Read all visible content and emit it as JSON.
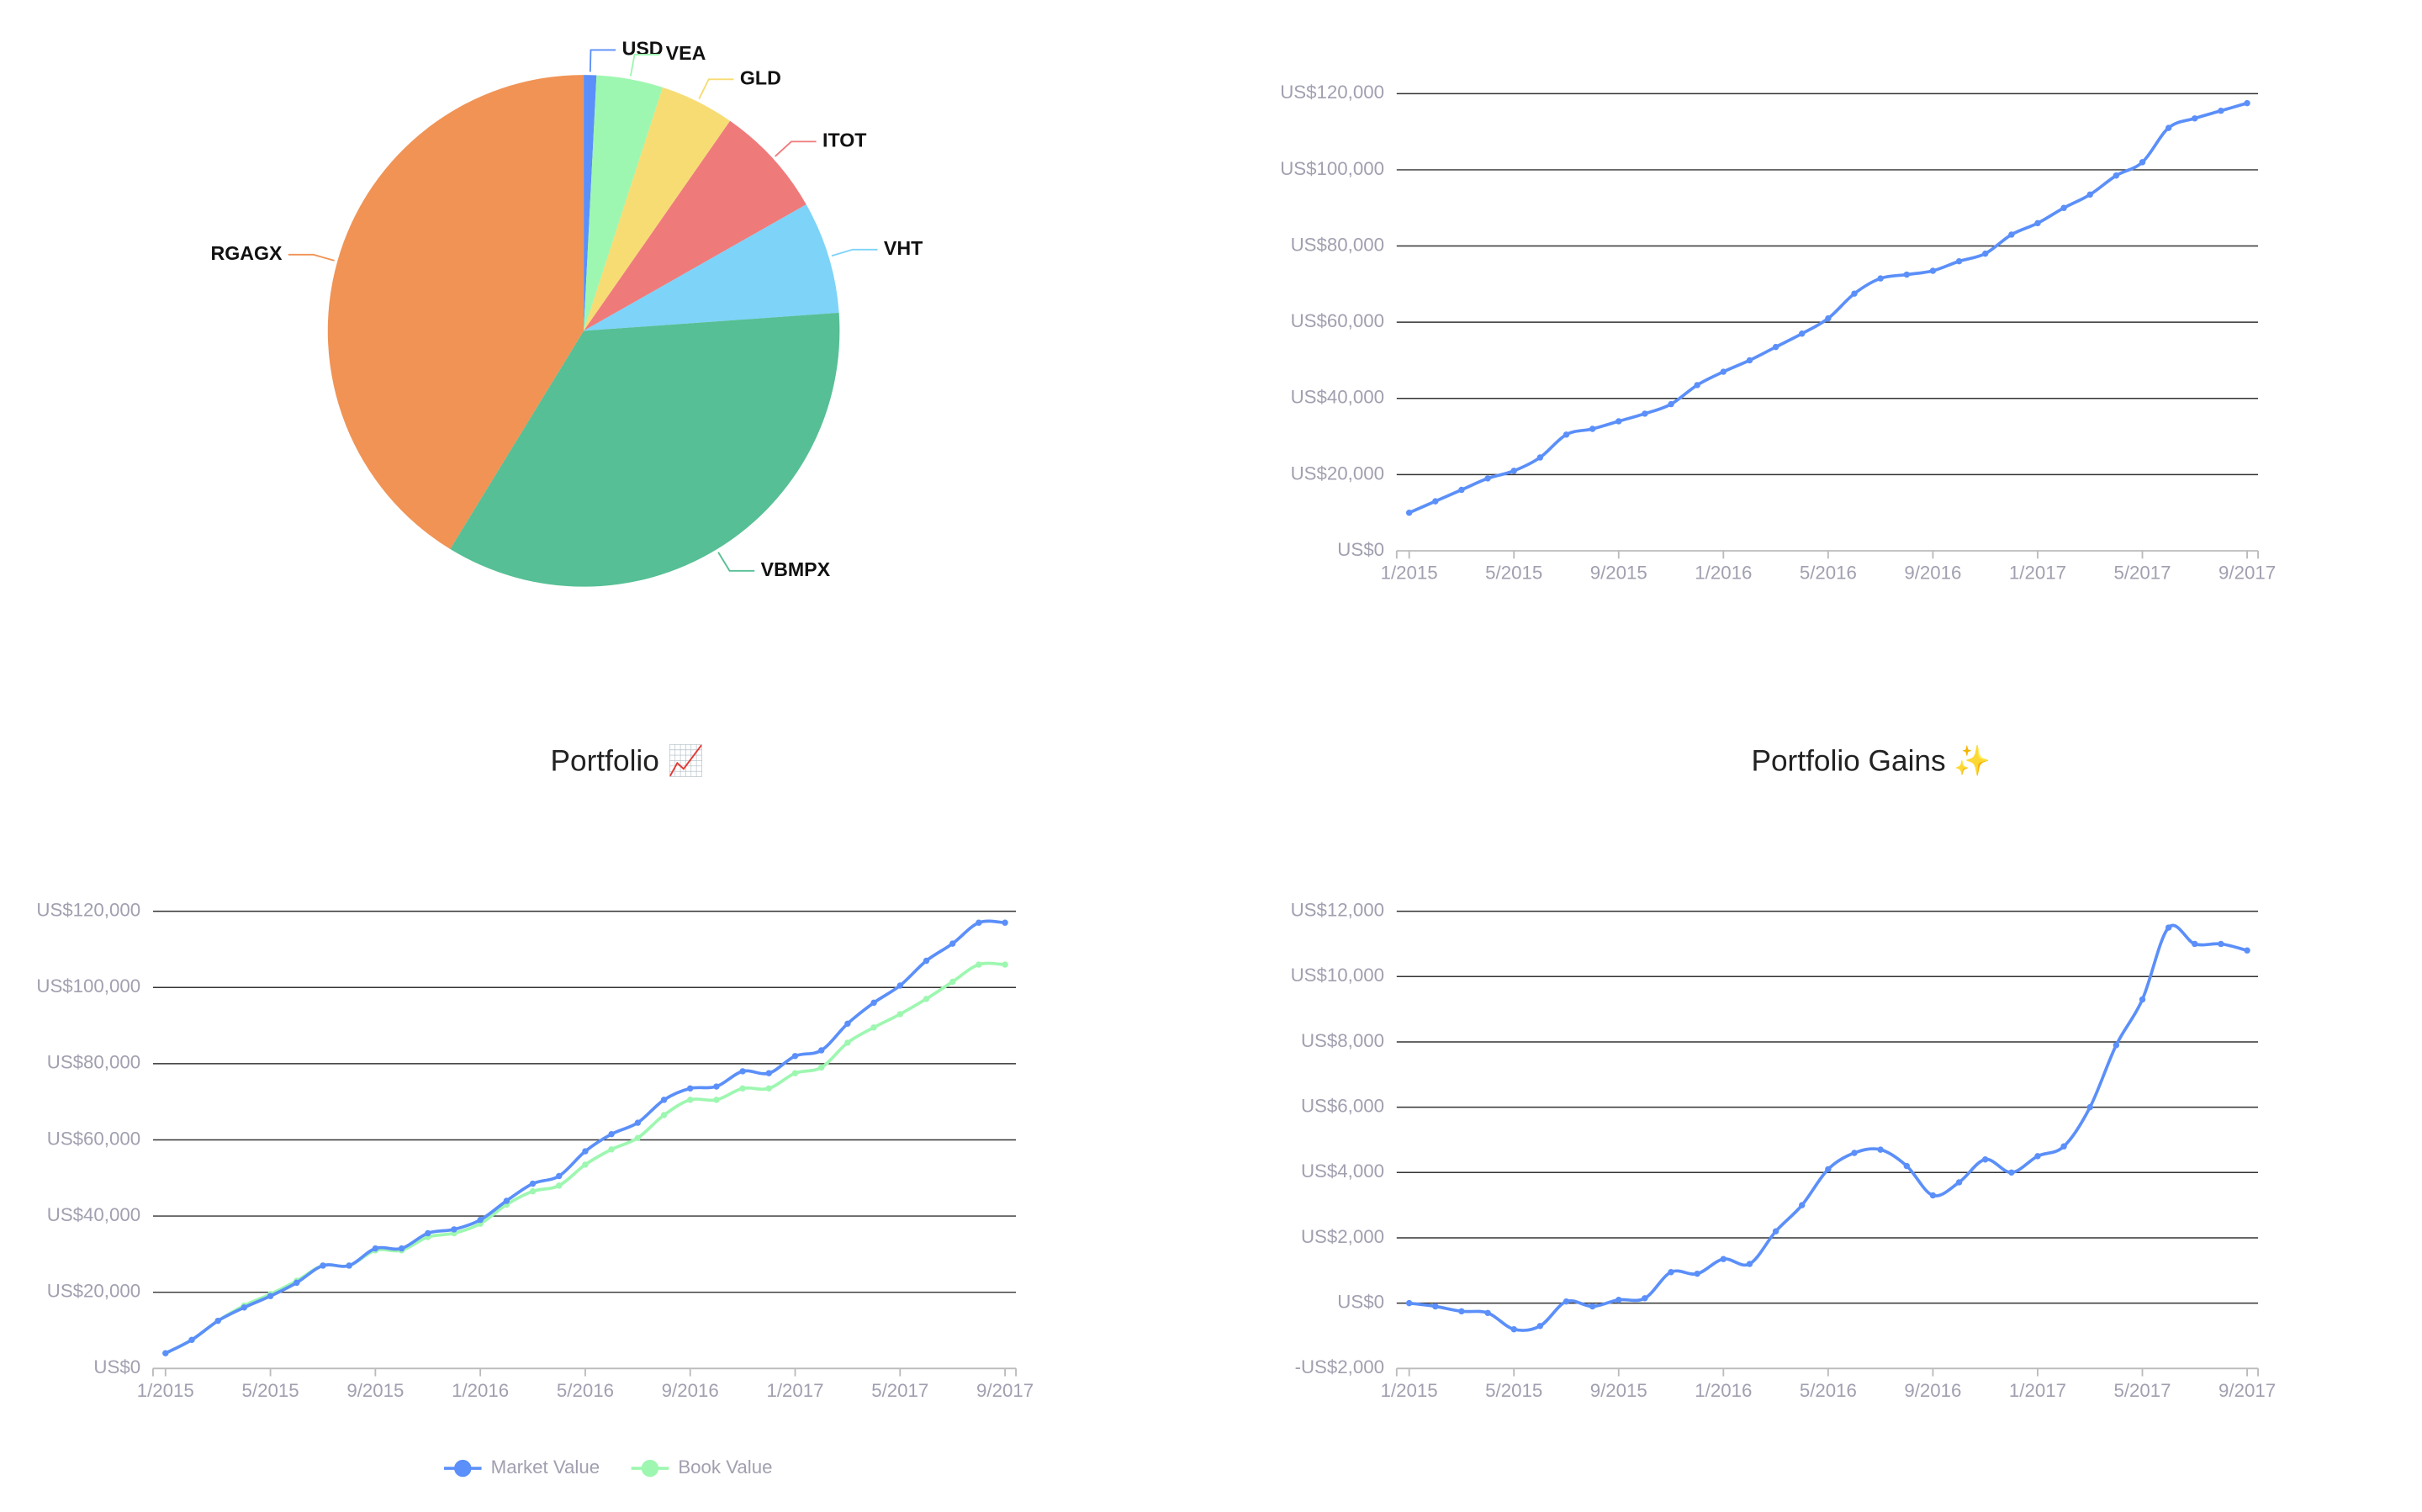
{
  "chart_data": [
    {
      "type": "pie",
      "categories": [
        "USD",
        "VEA",
        "GLD",
        "ITOT",
        "VHT",
        "VBMPX",
        "RGAGX"
      ],
      "values": [
        0.8,
        4.2,
        4.7,
        7.1,
        7.1,
        34.9,
        41.3
      ],
      "colors": [
        "#5b8ff9",
        "#9df7b0",
        "#f7dc74",
        "#ef7a7a",
        "#7dd3f8",
        "#56bf95",
        "#f09355"
      ]
    },
    {
      "type": "line",
      "x": [
        "1/2015",
        null,
        null,
        null,
        "5/2015",
        null,
        null,
        null,
        "9/2015",
        null,
        null,
        null,
        "1/2016",
        null,
        null,
        null,
        "5/2016",
        null,
        null,
        null,
        "9/2016",
        null,
        null,
        null,
        "1/2017",
        null,
        null,
        null,
        "5/2017",
        null,
        null,
        null,
        "9/2017"
      ],
      "values": [
        10000,
        13000,
        16000,
        19000,
        21000,
        24500,
        30500,
        32000,
        34000,
        36000,
        38500,
        43500,
        47000,
        50000,
        53500,
        57000,
        61000,
        67500,
        71500,
        72500,
        73500,
        76000,
        78000,
        83000,
        86000,
        90000,
        93500,
        98500,
        102000,
        111000,
        113500,
        115500,
        117500
      ],
      "color": "#5b8ff9",
      "ylim": [
        0,
        120000
      ],
      "yticks": [
        {
          "value": 0,
          "label": "US$0"
        },
        {
          "value": 20000,
          "label": "US$20,000"
        },
        {
          "value": 40000,
          "label": "US$40,000"
        },
        {
          "value": 60000,
          "label": "US$60,000"
        },
        {
          "value": 80000,
          "label": "US$80,000"
        },
        {
          "value": 100000,
          "label": "US$100,000"
        },
        {
          "value": 120000,
          "label": "US$120,000"
        }
      ],
      "grid": true
    },
    {
      "type": "line",
      "title": "Portfolio 📈",
      "x": [
        "1/2015",
        null,
        null,
        null,
        "5/2015",
        null,
        null,
        null,
        "9/2015",
        null,
        null,
        null,
        "1/2016",
        null,
        null,
        null,
        "5/2016",
        null,
        null,
        null,
        "9/2016",
        null,
        null,
        null,
        "1/2017",
        null,
        null,
        null,
        "5/2017",
        null,
        null,
        null,
        "9/2017"
      ],
      "series": [
        {
          "name": "Market Value",
          "color": "#5b8ff9",
          "values": [
            4000,
            7500,
            12500,
            16000,
            19000,
            22500,
            27000,
            27000,
            31500,
            31500,
            35500,
            36500,
            39000,
            44000,
            48500,
            50500,
            57000,
            61500,
            64500,
            70500,
            73500,
            74000,
            78000,
            77500,
            82000,
            83500,
            90500,
            96000,
            100500,
            107000,
            111500,
            117000,
            117000
          ]
        },
        {
          "name": "Book Value",
          "color": "#9df7b0",
          "values": [
            4000,
            7500,
            12500,
            16500,
            19500,
            23000,
            27000,
            27000,
            31000,
            31000,
            34500,
            35500,
            38000,
            43000,
            46500,
            48000,
            53500,
            57500,
            60500,
            66500,
            70500,
            70500,
            73500,
            73500,
            77500,
            79000,
            85500,
            89500,
            93000,
            97000,
            101500,
            106000,
            106000
          ]
        }
      ],
      "ylim": [
        0,
        120000
      ],
      "yticks": [
        {
          "value": 0,
          "label": "US$0"
        },
        {
          "value": 20000,
          "label": "US$20,000"
        },
        {
          "value": 40000,
          "label": "US$40,000"
        },
        {
          "value": 60000,
          "label": "US$60,000"
        },
        {
          "value": 80000,
          "label": "US$80,000"
        },
        {
          "value": 100000,
          "label": "US$100,000"
        },
        {
          "value": 120000,
          "label": "US$120,000"
        }
      ],
      "grid": true,
      "legend": "bottom"
    },
    {
      "type": "line",
      "title": "Portfolio Gains ✨",
      "x": [
        "1/2015",
        null,
        null,
        null,
        "5/2015",
        null,
        null,
        null,
        "9/2015",
        null,
        null,
        null,
        "1/2016",
        null,
        null,
        null,
        "5/2016",
        null,
        null,
        null,
        "9/2016",
        null,
        null,
        null,
        "1/2017",
        null,
        null,
        null,
        "5/2017",
        null,
        null,
        null,
        "9/2017"
      ],
      "values": [
        0,
        -100,
        -250,
        -300,
        -800,
        -700,
        50,
        -100,
        100,
        150,
        950,
        900,
        1350,
        1200,
        2200,
        3000,
        4100,
        4600,
        4700,
        4200,
        3300,
        3700,
        4400,
        4000,
        4500,
        4800,
        6000,
        7900,
        9300,
        11500,
        11000,
        11000,
        10800
      ],
      "color": "#5b8ff9",
      "ylim": [
        -2000,
        12000
      ],
      "yticks": [
        {
          "value": -2000,
          "label": "-US$2,000"
        },
        {
          "value": 0,
          "label": "US$0"
        },
        {
          "value": 2000,
          "label": "US$2,000"
        },
        {
          "value": 4000,
          "label": "US$4,000"
        },
        {
          "value": 6000,
          "label": "US$6,000"
        },
        {
          "value": 8000,
          "label": "US$8,000"
        },
        {
          "value": 10000,
          "label": "US$10,000"
        },
        {
          "value": 12000,
          "label": "US$12,000"
        }
      ],
      "grid": true
    }
  ]
}
